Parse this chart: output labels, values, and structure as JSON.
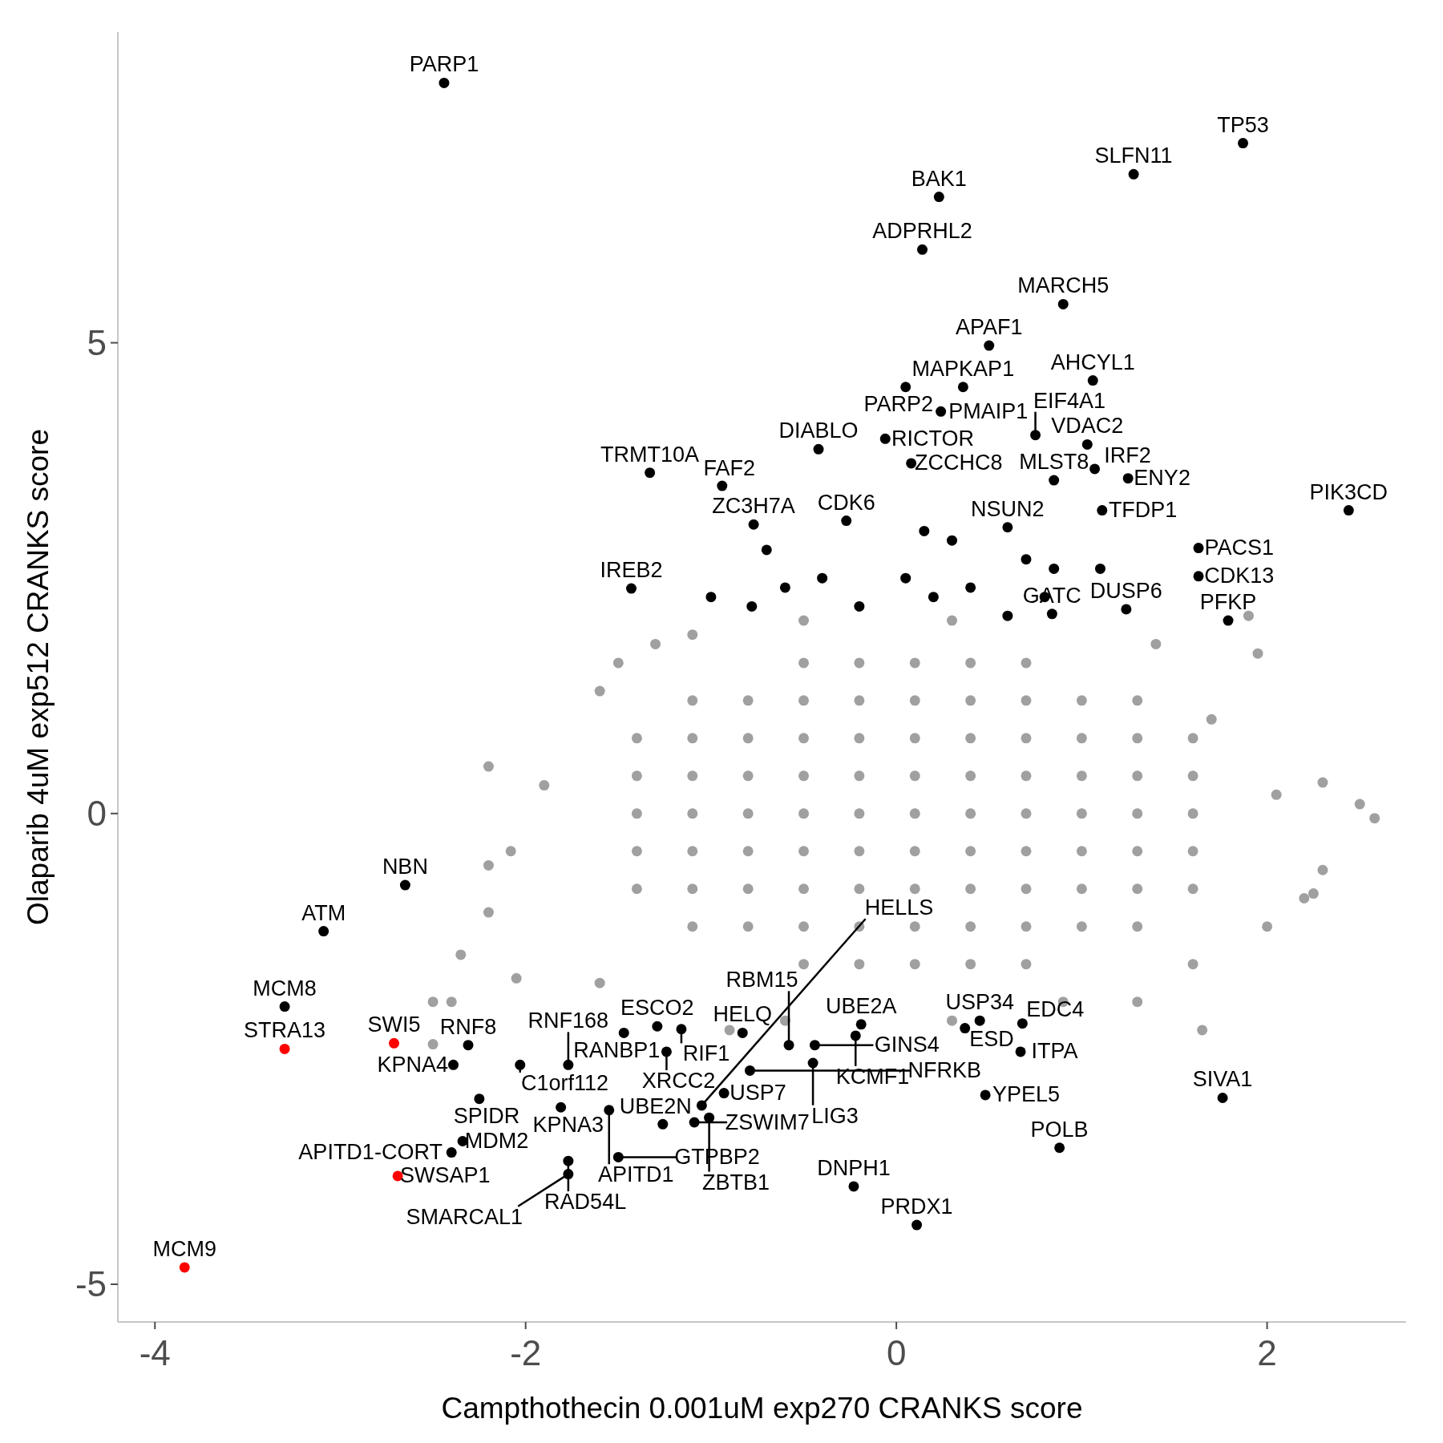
{
  "chart_data": {
    "type": "scatter",
    "xlabel": "Campthothecin 0.001uM exp270 CRANKS score",
    "ylabel": "Olaparib 4uM exp512 CRANKS score",
    "xlim": [
      -4.2,
      2.75
    ],
    "ylim": [
      -5.4,
      8.3
    ],
    "xticks": [
      -4,
      -2,
      0,
      2
    ],
    "yticks": [
      -5,
      0,
      5
    ],
    "marker": "circle",
    "series": [
      {
        "color": "#a0a0a0",
        "x": [
          -1.4,
          -1.1,
          -0.8,
          -0.5,
          -0.2,
          0.1,
          0.4,
          0.7,
          1.0,
          1.3,
          1.6,
          -1.4,
          -1.1,
          -0.8,
          -0.5,
          -0.2,
          0.1,
          0.4,
          0.7,
          1.0,
          1.3,
          1.6,
          -1.4,
          -1.1,
          -0.8,
          -0.5,
          -0.2,
          0.1,
          0.4,
          0.7,
          1.0,
          1.3,
          1.6,
          -1.4,
          -1.1,
          -0.8,
          -0.5,
          -0.2,
          0.1,
          0.4,
          0.7,
          1.0,
          1.3,
          1.6,
          -1.4,
          -1.1,
          -0.8,
          -0.5,
          -0.2,
          0.1,
          0.4,
          0.7,
          1.0,
          1.3,
          1.6,
          -1.1,
          -0.8,
          -0.5,
          -0.2,
          0.1,
          0.4,
          0.7,
          1.0,
          1.3,
          -1.1,
          -0.8,
          -0.5,
          -0.2,
          0.1,
          0.4,
          0.7,
          1.0,
          1.3,
          -0.5,
          -0.2,
          0.1,
          0.4,
          0.7,
          -0.5,
          -0.2,
          0.1,
          0.4,
          0.7,
          2.5,
          2.58,
          2.3,
          2.2,
          2.3,
          2.0,
          1.65,
          1.95,
          1.9,
          2.25,
          -2.2,
          -2.2,
          -2.35,
          -2.05,
          -2.5,
          -2.2,
          -1.9,
          -1.6,
          -1.5,
          -1.3,
          -1.1,
          -2.08,
          -2.4,
          -2.5,
          -1.6,
          1.7,
          2.05,
          1.3,
          0.9,
          -0.9,
          -0.6,
          0.3,
          1.6,
          1.4,
          0.3,
          -0.5
        ],
        "values": [
          0,
          0,
          0,
          0,
          0,
          0,
          0,
          0,
          0,
          0,
          0,
          0.4,
          0.4,
          0.4,
          0.4,
          0.4,
          0.4,
          0.4,
          0.4,
          0.4,
          0.4,
          0.4,
          -0.4,
          -0.4,
          -0.4,
          -0.4,
          -0.4,
          -0.4,
          -0.4,
          -0.4,
          -0.4,
          -0.4,
          -0.4,
          0.8,
          0.8,
          0.8,
          0.8,
          0.8,
          0.8,
          0.8,
          0.8,
          0.8,
          0.8,
          0.8,
          -0.8,
          -0.8,
          -0.8,
          -0.8,
          -0.8,
          -0.8,
          -0.8,
          -0.8,
          -0.8,
          -0.8,
          -0.8,
          1.2,
          1.2,
          1.2,
          1.2,
          1.2,
          1.2,
          1.2,
          1.2,
          1.2,
          -1.2,
          -1.2,
          -1.2,
          -1.2,
          -1.2,
          -1.2,
          -1.2,
          -1.2,
          -1.2,
          1.6,
          1.6,
          1.6,
          1.6,
          1.6,
          -1.6,
          -1.6,
          -1.6,
          -1.6,
          -1.6,
          0.1,
          -0.05,
          0.33,
          -0.9,
          -0.6,
          -1.2,
          -2.3,
          1.7,
          2.1,
          -0.85,
          -0.55,
          -1.05,
          -1.5,
          -1.75,
          -2.0,
          0.5,
          0.3,
          1.3,
          1.6,
          1.8,
          1.9,
          -0.4,
          -2.0,
          -2.45,
          -1.8,
          1.0,
          0.2,
          -2.0,
          -2.0,
          -2.3,
          -2.2,
          -2.2,
          -1.6,
          1.8,
          2.05,
          2.05
        ]
      },
      {
        "color": "#000000",
        "x": [
          -2.44,
          1.87,
          1.28,
          0.23,
          0.14,
          0.9,
          0.5,
          1.06,
          0.36,
          0.05,
          -0.06,
          0.24,
          0.08,
          0.75,
          1.07,
          1.03,
          0.85,
          1.25,
          -1.33,
          -0.94,
          -0.42,
          0.6,
          1.11,
          2.44,
          -0.77,
          -0.27,
          1.63,
          -1.43,
          1.63,
          1.24,
          1.79,
          0.84,
          -2.65,
          -3.09,
          -3.3,
          -2.31,
          -2.03,
          -2.39,
          -1.47,
          -1.77,
          -1.81,
          -2.25,
          -2.34,
          -2.4,
          -1.55,
          -1.77,
          -1.77,
          -1.5,
          -1.29,
          -1.16,
          -1.24,
          -0.93,
          -1.09,
          -1.26,
          -1.01,
          -0.83,
          -1.05,
          -0.23,
          0.11,
          -0.58,
          -0.44,
          -0.19,
          -0.22,
          -0.45,
          -0.79,
          0.37,
          0.45,
          0.68,
          0.67,
          0.48,
          0.88,
          1.76,
          -0.7,
          -0.6,
          -0.4,
          -0.2,
          0.05,
          0.2,
          0.4,
          0.6,
          0.8,
          0.85,
          -0.78,
          -1.0,
          0.3,
          0.15,
          0.7,
          1.1
        ],
        "values": [
          7.76,
          7.12,
          6.79,
          6.55,
          5.99,
          5.41,
          4.97,
          4.6,
          4.53,
          4.53,
          3.98,
          4.27,
          3.72,
          4.02,
          3.66,
          3.92,
          3.54,
          3.56,
          3.62,
          3.48,
          3.87,
          3.04,
          3.22,
          3.22,
          3.07,
          3.11,
          2.82,
          2.39,
          2.52,
          2.17,
          2.05,
          2.12,
          -0.76,
          -1.25,
          -2.05,
          -2.46,
          -2.67,
          -2.67,
          -2.33,
          -2.67,
          -3.12,
          -3.03,
          -3.48,
          -3.6,
          -3.15,
          -3.69,
          -3.83,
          -3.65,
          -2.26,
          -2.29,
          -2.53,
          -2.97,
          -3.28,
          -3.3,
          -3.23,
          -2.33,
          -3.1,
          -3.96,
          -4.37,
          -2.46,
          -2.46,
          -2.24,
          -2.36,
          -2.65,
          -2.73,
          -2.28,
          -2.2,
          -2.23,
          -2.53,
          -2.99,
          -3.55,
          -3.02,
          2.8,
          2.4,
          2.5,
          2.2,
          2.5,
          2.3,
          2.4,
          2.1,
          2.3,
          2.6,
          2.2,
          2.3,
          2.9,
          3.0,
          2.7,
          2.6
        ]
      },
      {
        "color": "#ff0000",
        "x": [
          -2.71,
          -3.3,
          -2.69,
          -3.84
        ],
        "values": [
          -2.44,
          -2.5,
          -3.85,
          -4.82
        ]
      }
    ],
    "annotations": [
      {
        "text": "PARP1",
        "x": -2.44,
        "y": 7.76
      },
      {
        "text": "TP53",
        "x": 1.87,
        "y": 7.12
      },
      {
        "text": "SLFN11",
        "x": 1.28,
        "y": 6.79
      },
      {
        "text": "BAK1",
        "x": 0.23,
        "y": 6.55
      },
      {
        "text": "ADPRHL2",
        "x": 0.14,
        "y": 5.99
      },
      {
        "text": "MARCH5",
        "x": 0.9,
        "y": 5.41
      },
      {
        "text": "APAF1",
        "x": 0.5,
        "y": 4.97
      },
      {
        "text": "AHCYL1",
        "x": 1.06,
        "y": 4.6
      },
      {
        "text": "MAPKAP1",
        "x": 0.36,
        "y": 4.53
      },
      {
        "text": "PARP2",
        "x": 0.05,
        "y": 4.53
      },
      {
        "text": "RICTOR",
        "x": -0.06,
        "y": 3.98
      },
      {
        "text": "PMAIP1",
        "x": 0.24,
        "y": 4.27
      },
      {
        "text": "ZCCHC8",
        "x": 0.08,
        "y": 3.72
      },
      {
        "text": "EIF4A1",
        "x": 0.75,
        "y": 4.02
      },
      {
        "text": "IRF2",
        "x": 1.07,
        "y": 3.66
      },
      {
        "text": "VDAC2",
        "x": 1.03,
        "y": 3.92
      },
      {
        "text": "MLST8",
        "x": 0.85,
        "y": 3.54
      },
      {
        "text": "ENY2",
        "x": 1.25,
        "y": 3.56
      },
      {
        "text": "TRMT10A",
        "x": -1.33,
        "y": 3.62
      },
      {
        "text": "FAF2",
        "x": -0.94,
        "y": 3.48
      },
      {
        "text": "DIABLO",
        "x": -0.42,
        "y": 3.87
      },
      {
        "text": "NSUN2",
        "x": 0.6,
        "y": 3.04
      },
      {
        "text": "TFDP1",
        "x": 1.11,
        "y": 3.22
      },
      {
        "text": "PIK3CD",
        "x": 2.44,
        "y": 3.22
      },
      {
        "text": "ZC3H7A",
        "x": -0.77,
        "y": 3.07
      },
      {
        "text": "CDK6",
        "x": -0.27,
        "y": 3.11
      },
      {
        "text": "PACS1",
        "x": 1.63,
        "y": 2.82
      },
      {
        "text": "IREB2",
        "x": -1.43,
        "y": 2.39
      },
      {
        "text": "CDK13",
        "x": 1.63,
        "y": 2.52
      },
      {
        "text": "DUSP6",
        "x": 1.24,
        "y": 2.17
      },
      {
        "text": "PFKP",
        "x": 1.79,
        "y": 2.05
      },
      {
        "text": "GATC",
        "x": 0.84,
        "y": 2.12
      },
      {
        "text": "NBN",
        "x": -2.65,
        "y": -0.76
      },
      {
        "text": "ATM",
        "x": -3.09,
        "y": -1.25
      },
      {
        "text": "MCM8",
        "x": -3.3,
        "y": -2.05
      },
      {
        "text": "SWI5",
        "x": -2.71,
        "y": -2.44
      },
      {
        "text": "STRA13",
        "x": -3.3,
        "y": -2.5
      },
      {
        "text": "RNF8",
        "x": -2.31,
        "y": -2.46
      },
      {
        "text": "C1orf112",
        "x": -2.03,
        "y": -2.67
      },
      {
        "text": "KPNA4",
        "x": -2.39,
        "y": -2.67
      },
      {
        "text": "RANBP1",
        "x": -1.47,
        "y": -2.33
      },
      {
        "text": "RNF168",
        "x": -1.77,
        "y": -2.67
      },
      {
        "text": "KPNA3",
        "x": -1.81,
        "y": -3.12
      },
      {
        "text": "SPIDR",
        "x": -2.25,
        "y": -3.03
      },
      {
        "text": "MDM2",
        "x": -2.34,
        "y": -3.48
      },
      {
        "text": "APITD1-CORT",
        "x": -2.4,
        "y": -3.6
      },
      {
        "text": "SWSAP1",
        "x": -2.69,
        "y": -3.85
      },
      {
        "text": "MCM9",
        "x": -3.84,
        "y": -4.82
      },
      {
        "text": "APITD1",
        "x": -1.55,
        "y": -3.15
      },
      {
        "text": "RAD54L",
        "x": -1.77,
        "y": -3.69
      },
      {
        "text": "SMARCAL1",
        "x": -1.77,
        "y": -3.83
      },
      {
        "text": "GTPBP2",
        "x": -1.5,
        "y": -3.65
      },
      {
        "text": "ESCO2",
        "x": -1.29,
        "y": -2.26
      },
      {
        "text": "RIF1",
        "x": -1.16,
        "y": -2.29
      },
      {
        "text": "XRCC2",
        "x": -1.24,
        "y": -2.53
      },
      {
        "text": "USP7",
        "x": -0.93,
        "y": -2.97
      },
      {
        "text": "ZSWIM7",
        "x": -1.09,
        "y": -3.28
      },
      {
        "text": "UBE2N",
        "x": -1.26,
        "y": -3.3
      },
      {
        "text": "ZBTB1",
        "x": -1.01,
        "y": -3.23
      },
      {
        "text": "HELQ",
        "x": -0.83,
        "y": -2.33
      },
      {
        "text": "HELLS",
        "x": -1.05,
        "y": -3.1
      },
      {
        "text": "DNPH1",
        "x": -0.23,
        "y": -3.96
      },
      {
        "text": "PRDX1",
        "x": 0.11,
        "y": -4.37
      },
      {
        "text": "RBM15",
        "x": -0.58,
        "y": -2.46
      },
      {
        "text": "GINS4",
        "x": -0.44,
        "y": -2.46
      },
      {
        "text": "UBE2A",
        "x": -0.19,
        "y": -2.24
      },
      {
        "text": "KCMF1",
        "x": -0.22,
        "y": -2.36
      },
      {
        "text": "LIG3",
        "x": -0.45,
        "y": -2.65
      },
      {
        "text": "NFRKB",
        "x": -0.79,
        "y": -2.73
      },
      {
        "text": "ESD",
        "x": 0.37,
        "y": -2.28
      },
      {
        "text": "USP34",
        "x": 0.45,
        "y": -2.2
      },
      {
        "text": "EDC4",
        "x": 0.68,
        "y": -2.23
      },
      {
        "text": "ITPA",
        "x": 0.67,
        "y": -2.53
      },
      {
        "text": "YPEL5",
        "x": 0.48,
        "y": -2.99
      },
      {
        "text": "POLB",
        "x": 0.88,
        "y": -3.55
      },
      {
        "text": "SIVA1",
        "x": 1.76,
        "y": -3.02
      }
    ]
  }
}
